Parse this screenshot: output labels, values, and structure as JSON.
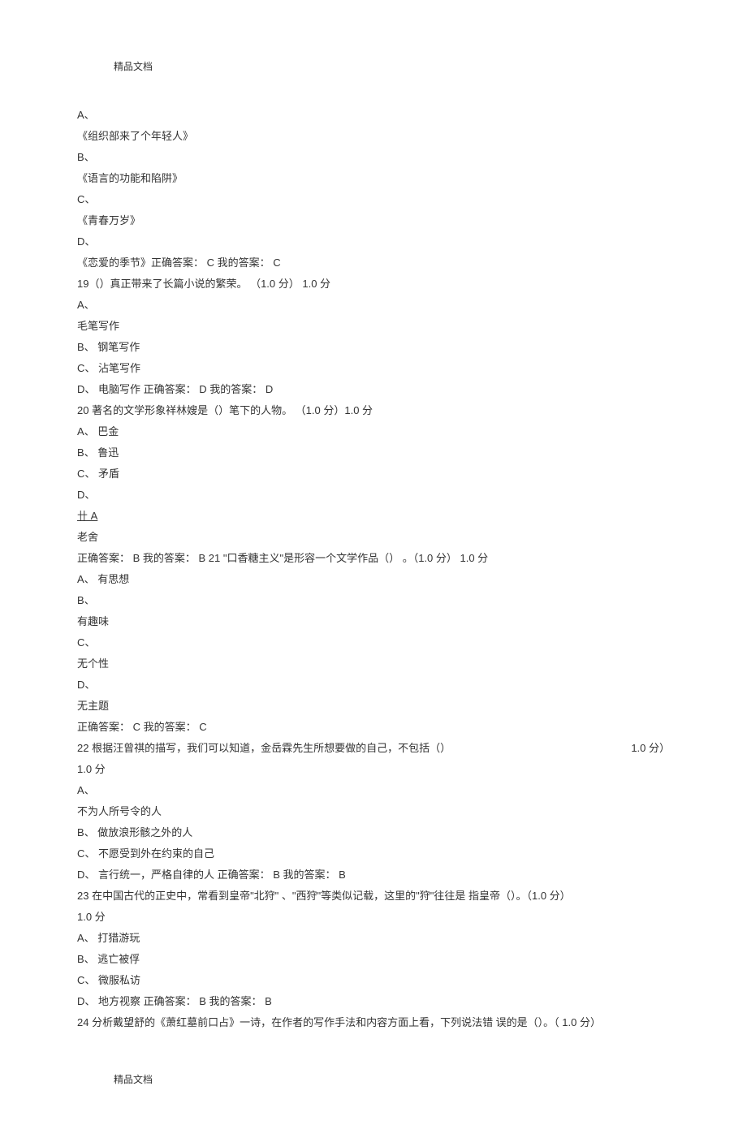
{
  "header": "精品文档",
  "footer": "精品文档",
  "lines": {
    "l1": "A、",
    "l2": "《组织部来了个年轻人》",
    "l3": "B、",
    "l4": "《语言的功能和陷阱》",
    "l5": "C、",
    "l6": "《青春万岁》",
    "l7": "D、",
    "l8": "《恋爱的季节》正确答案： C 我的答案： C",
    "l9": "19（）真正带来了长篇小说的繁荣。 （1.0 分） 1.0 分",
    "l10": "A、",
    "l11": "毛笔写作",
    "l12": "B、 钢笔写作",
    "l13": "C、 沾笔写作",
    "l14": "D、 电脑写作 正确答案： D 我的答案： D",
    "l15": "20 著名的文学形象祥林嫂是（）笔下的人物。 （1.0 分）1.0 分",
    "l16": "A、 巴金",
    "l17": "B、 鲁迅",
    "l18": "C、 矛盾",
    "l19": "D、",
    "l20": "卄 A",
    "l21": "老舍",
    "l22": "正确答案： B 我的答案： B 21 \"口香糖主义\"是形容一个文学作品（） 。（1.0 分） 1.0 分",
    "l23": "A、 有思想",
    "l24": "B、",
    "l25": "有趣味",
    "l26": "C、",
    "l27": "无个性",
    "l28": "D、",
    "l29": "无主题",
    "l30": "正确答案： C 我的答案： C",
    "l31a": "22  根据汪曾祺的描写，我们可以知道，金岳霖先生所想要做的自己，不包括（）",
    "l31b": "1.0 分）",
    "l32": "1.0 分",
    "l33": "A、",
    "l34": "不为人所号令的人",
    "l35": "B、 做放浪形骸之外的人",
    "l36": "C、 不愿受到外在约束的自己",
    "l37": "D、 言行统一，严格自律的人 正确答案： B 我的答案： B",
    "l38": "23  在中国古代的正史中，常看到皇帝\"北狩\" 、\"西狩\"等类似记载，这里的\"狩\"往往是 指皇帝（）。（1.0 分）",
    "l39": "1.0 分",
    "l40": "A、 打猎游玩",
    "l41": "B、 逃亡被俘",
    "l42": "C、 微服私访",
    "l43": "D、 地方视察 正确答案： B 我的答案： B",
    "l44": "24  分析戴望舒的《萧红墓前口占》一诗，在作者的写作手法和内容方面上看，下列说法错 误的是（）。（ 1.0 分）"
  }
}
